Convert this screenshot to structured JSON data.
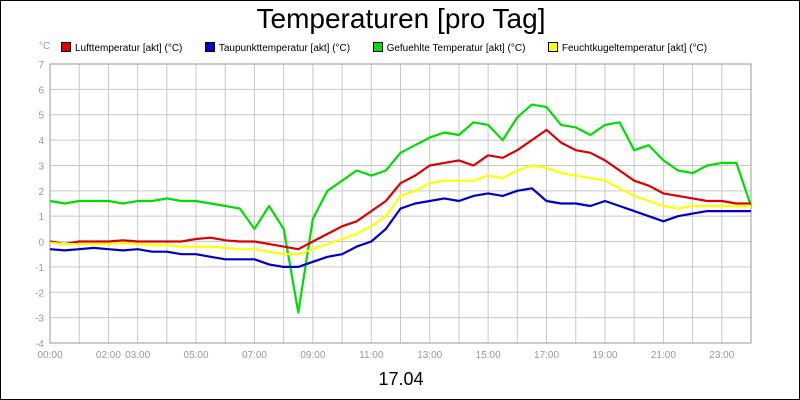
{
  "chart_data": {
    "type": "line",
    "title": "Temperaturen [pro Tag]",
    "date": "17.04",
    "y_unit": "°C",
    "ylim": [
      -4,
      7
    ],
    "y_ticks": [
      "-4",
      "-3",
      "-2",
      "-1",
      "0",
      "1",
      "2",
      "3",
      "4",
      "5",
      "6",
      "7"
    ],
    "xlim": [
      0,
      24
    ],
    "x_ticks": [
      {
        "hour": 0,
        "label": "00:00"
      },
      {
        "hour": 2,
        "label": "02:00"
      },
      {
        "hour": 3,
        "label": "03:00"
      },
      {
        "hour": 5,
        "label": "05:00"
      },
      {
        "hour": 7,
        "label": "07:00"
      },
      {
        "hour": 9,
        "label": "09:00"
      },
      {
        "hour": 11,
        "label": "11:00"
      },
      {
        "hour": 13,
        "label": "13:00"
      },
      {
        "hour": 15,
        "label": "15:00"
      },
      {
        "hour": 17,
        "label": "17:00"
      },
      {
        "hour": 19,
        "label": "19:00"
      },
      {
        "hour": 21,
        "label": "21:00"
      },
      {
        "hour": 23,
        "label": "23:00"
      }
    ],
    "grid": true,
    "legend_position": "top",
    "x_hours": [
      0,
      0.5,
      1,
      1.5,
      2,
      2.5,
      3,
      3.5,
      4,
      4.5,
      5,
      5.5,
      6,
      6.5,
      7,
      7.5,
      8,
      8.5,
      9,
      9.5,
      10,
      10.5,
      11,
      11.5,
      12,
      12.5,
      13,
      13.5,
      14,
      14.5,
      15,
      15.5,
      16,
      16.5,
      17,
      17.5,
      18,
      18.5,
      19,
      19.5,
      20,
      20.5,
      21,
      21.5,
      22,
      22.5,
      23,
      23.5,
      24
    ],
    "series": [
      {
        "name": "Lufttemperatur [akt] (°C)",
        "color": "#dd0000",
        "values": [
          0,
          -0.1,
          0,
          0,
          0,
          0.05,
          0,
          0,
          0,
          0,
          0.1,
          0.15,
          0.05,
          0,
          0,
          -0.1,
          -0.2,
          -0.3,
          0,
          0.3,
          0.6,
          0.8,
          1.2,
          1.6,
          2.3,
          2.6,
          3.0,
          3.1,
          3.2,
          3.0,
          3.4,
          3.3,
          3.6,
          4.0,
          4.4,
          3.9,
          3.6,
          3.5,
          3.2,
          2.8,
          2.4,
          2.2,
          1.9,
          1.8,
          1.7,
          1.6,
          1.6,
          1.5,
          1.5
        ]
      },
      {
        "name": "Taupunkttemperatur [akt] (°C)",
        "color": "#0000cc",
        "values": [
          -0.3,
          -0.35,
          -0.3,
          -0.25,
          -0.3,
          -0.35,
          -0.3,
          -0.4,
          -0.4,
          -0.5,
          -0.5,
          -0.6,
          -0.7,
          -0.7,
          -0.7,
          -0.9,
          -1.0,
          -1.0,
          -0.8,
          -0.6,
          -0.5,
          -0.2,
          0,
          0.5,
          1.3,
          1.5,
          1.6,
          1.7,
          1.6,
          1.8,
          1.9,
          1.8,
          2.0,
          2.1,
          1.6,
          1.5,
          1.5,
          1.4,
          1.6,
          1.4,
          1.2,
          1.0,
          0.8,
          1.0,
          1.1,
          1.2,
          1.2,
          1.2,
          1.2
        ]
      },
      {
        "name": "Gefuehlte Temperatur [akt] (°C)",
        "color": "#00dd00",
        "values": [
          1.6,
          1.5,
          1.6,
          1.6,
          1.6,
          1.5,
          1.6,
          1.6,
          1.7,
          1.6,
          1.6,
          1.5,
          1.4,
          1.3,
          0.5,
          1.4,
          0.5,
          -2.8,
          0.9,
          2.0,
          2.4,
          2.8,
          2.6,
          2.8,
          3.5,
          3.8,
          4.1,
          4.3,
          4.2,
          4.7,
          4.6,
          4.0,
          4.9,
          5.4,
          5.3,
          4.6,
          4.5,
          4.2,
          4.6,
          4.7,
          3.6,
          3.8,
          3.2,
          2.8,
          2.7,
          3.0,
          3.1,
          3.1,
          1.4
        ]
      },
      {
        "name": "Feuchtkugeltemperatur [akt] (°C)",
        "color": "#ffff00",
        "values": [
          -0.05,
          -0.1,
          -0.1,
          -0.1,
          -0.1,
          -0.05,
          -0.1,
          -0.15,
          -0.15,
          -0.2,
          -0.2,
          -0.2,
          -0.25,
          -0.3,
          -0.3,
          -0.4,
          -0.5,
          -0.5,
          -0.3,
          -0.1,
          0.1,
          0.3,
          0.6,
          1.0,
          1.8,
          2.0,
          2.3,
          2.4,
          2.4,
          2.4,
          2.6,
          2.5,
          2.8,
          3.0,
          2.9,
          2.7,
          2.6,
          2.5,
          2.4,
          2.1,
          1.8,
          1.6,
          1.4,
          1.3,
          1.4,
          1.4,
          1.4,
          1.4,
          1.4
        ]
      }
    ]
  },
  "colors": {
    "grid": "#c8c8c8",
    "axis": "#999999",
    "plot_border": "#999999"
  }
}
